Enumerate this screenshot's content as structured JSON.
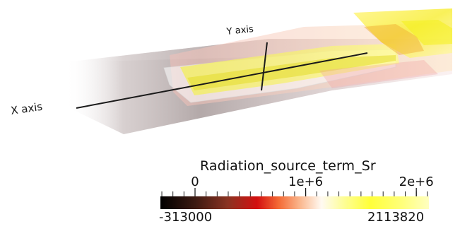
{
  "axes": {
    "x_label": "X axis",
    "y_label": "Y axis"
  },
  "colorbar": {
    "title": "Radiation_source_term_Sr",
    "range_min": "-313000",
    "range_max": "2113820",
    "min_value": -313000,
    "max_value": 2113820,
    "tick_labels": [
      "0",
      "1e+6",
      "2e+6"
    ],
    "tick_values": [
      0,
      1000000,
      2000000
    ],
    "colormap": [
      "#000000",
      "#6a2a1c",
      "#d40000",
      "#f57a45",
      "#ffffff",
      "#ffff44",
      "#ffff9a"
    ]
  }
}
